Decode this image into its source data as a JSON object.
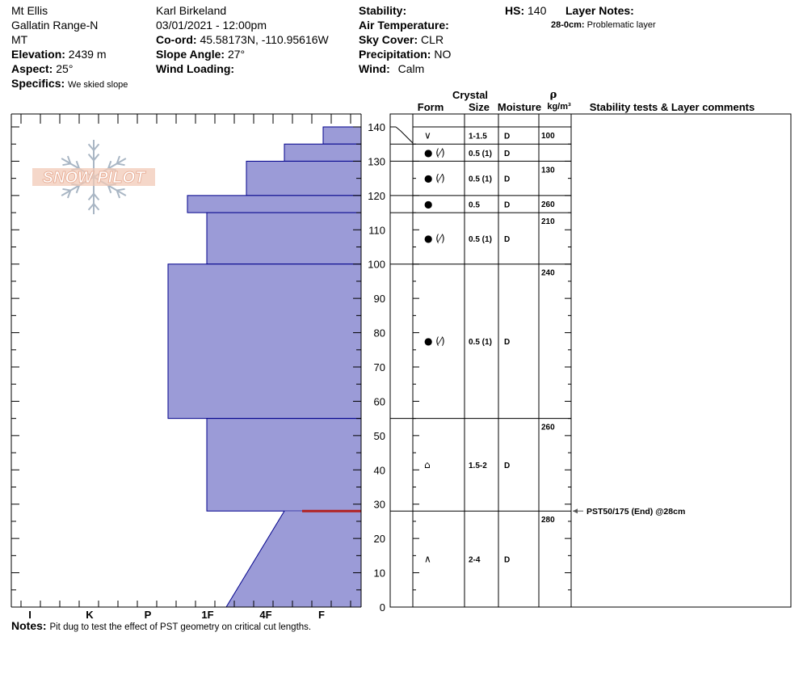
{
  "header": {
    "location": "Mt Ellis",
    "range": "Gallatin Range-N",
    "state": "MT",
    "elevation_label": "Elevation:",
    "elevation": "2439 m",
    "aspect_label": "Aspect:",
    "aspect": "25°",
    "specifics_label": "Specifics:",
    "specifics": "We skied slope",
    "observer": "Karl Birkeland",
    "datetime": "03/01/2021 - 12:00pm",
    "coord_label": "Co-ord:",
    "coord": "45.58173N, -110.95616W",
    "slope_label": "Slope Angle:",
    "slope": "27°",
    "wind_loading_label": "Wind Loading:",
    "wind_loading": "",
    "stability_label": "Stability:",
    "stability": "",
    "air_temp_label": "Air Temperature:",
    "air_temp": "",
    "sky_label": "Sky Cover:",
    "sky": "CLR",
    "precip_label": "Precipitation:",
    "precip": "NO",
    "wind_label": "Wind:",
    "wind": "Calm",
    "hs_label": "HS:",
    "hs": "140",
    "layer_notes_label": "Layer Notes:",
    "layer_note_depth": "28-0cm:",
    "layer_note_text": "Problematic layer"
  },
  "logo_text": "SNOW PILOT",
  "notes_label": "Notes:",
  "notes": "Pit dug to test the effect of PST geometry on critical cut lengths.",
  "columns": {
    "crystal": "Crystal",
    "form": "Form",
    "size": "Size",
    "moisture": "Moisture",
    "rho": "ρ",
    "density_unit": "kg/m³",
    "stability": "Stability tests & Layer comments"
  },
  "chart_data": {
    "type": "snow_profile",
    "y_label": "height (cm)",
    "y_range": [
      0,
      140
    ],
    "y_ticks": [
      0,
      10,
      20,
      30,
      40,
      50,
      60,
      70,
      80,
      90,
      100,
      110,
      120,
      130,
      140
    ],
    "hardness_scale": [
      "I",
      "K",
      "P",
      "1F",
      "4F",
      "F"
    ],
    "hardness_profile": [
      {
        "top": 140,
        "bottom": 135,
        "hardness": "F+"
      },
      {
        "top": 135,
        "bottom": 130,
        "hardness": "4F+"
      },
      {
        "top": 130,
        "bottom": 120,
        "hardness": "4F-"
      },
      {
        "top": 120,
        "bottom": 115,
        "hardness": "1F-"
      },
      {
        "top": 115,
        "bottom": 100,
        "hardness": "1F"
      },
      {
        "top": 100,
        "bottom": 55,
        "hardness": "P+"
      },
      {
        "top": 55,
        "bottom": 28,
        "hardness": "1F"
      },
      {
        "top": 28,
        "bottom": 0,
        "hardness_top": "4F+",
        "hardness_bottom": "1F+"
      }
    ],
    "layers": [
      {
        "top": 140,
        "bottom": 135,
        "form": "∨",
        "size": "1-1.5",
        "moisture": "D",
        "density": "100"
      },
      {
        "top": 135,
        "bottom": 130,
        "form": "● (⁄)",
        "size": "0.5 (1)",
        "moisture": "D",
        "density": ""
      },
      {
        "top": 130,
        "bottom": 120,
        "form": "● (⁄)",
        "size": "0.5 (1)",
        "moisture": "D",
        "density": "130"
      },
      {
        "top": 120,
        "bottom": 115,
        "form": "●",
        "size": "0.5",
        "moisture": "D",
        "density": "260"
      },
      {
        "top": 115,
        "bottom": 100,
        "form": "● (⁄)",
        "size": "0.5 (1)",
        "moisture": "D",
        "density": "210"
      },
      {
        "top": 100,
        "bottom": 55,
        "form": "● (⁄)",
        "size": "0.5 (1)",
        "moisture": "D",
        "density": "240"
      },
      {
        "top": 55,
        "bottom": 28,
        "form": "⌂",
        "size": "1.5-2",
        "moisture": "D",
        "density": "260"
      },
      {
        "top": 28,
        "bottom": 0,
        "form": "∧",
        "size": "2-4",
        "moisture": "D",
        "density": "280"
      }
    ],
    "problem_layer": 28,
    "stability_tests": [
      {
        "height": 28,
        "text": "PST50/175 (End) @28cm"
      }
    ],
    "colors": {
      "fill": "#9b9bd7",
      "stroke": "#00008b",
      "problem": "#b22222"
    }
  }
}
